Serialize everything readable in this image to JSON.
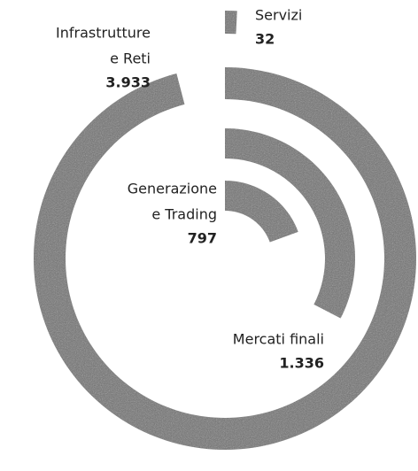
{
  "chart_data": {
    "type": "radial_bar",
    "categories": [
      [
        "Infrastrutture",
        "e Reti"
      ],
      [
        "Mercati finali"
      ],
      [
        "Generazione",
        "e Trading"
      ],
      [
        "Servizi"
      ]
    ],
    "values": [
      3933,
      1336,
      797,
      32
    ],
    "value_labels": [
      "3.933",
      "1.336",
      "797",
      "32"
    ],
    "color": "#707070"
  }
}
